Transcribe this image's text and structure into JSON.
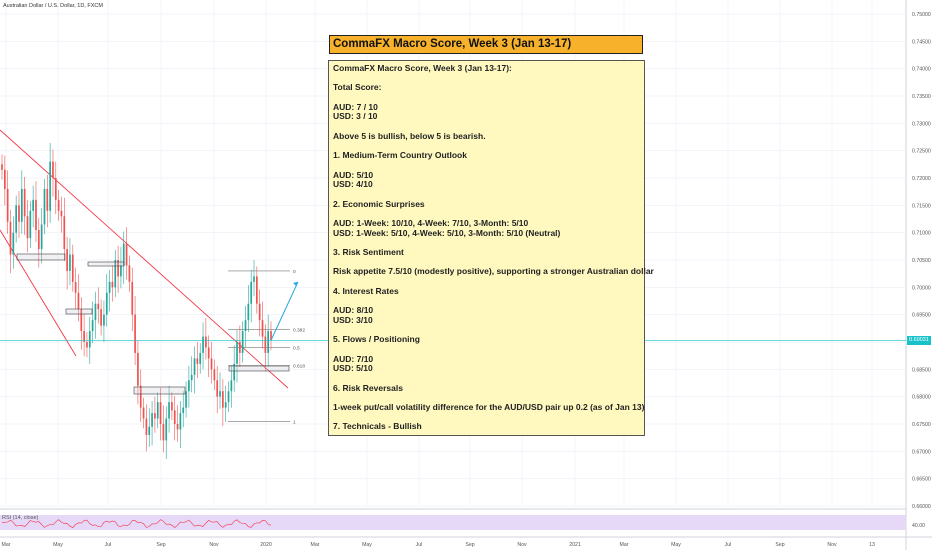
{
  "symbol_title": "Australian Dollar / U.S. Dollar, 1D, FXCM",
  "current_price": "0.69031",
  "title_box": "CommaFX Macro Score, Week 3 (Jan 13-17)",
  "note_lines": [
    "CommaFX Macro Score, Week 3 (Jan 13-17):",
    "",
    "Total Score:",
    "",
    "AUD: 7 / 10",
    "USD: 3 / 10",
    "",
    "Above 5 is bullish, below 5 is bearish.",
    "",
    "1. Medium-Term Country Outlook",
    "",
    "AUD: 5/10",
    "USD: 4/10",
    "",
    "2. Economic Surprises",
    "",
    "AUD: 1-Week: 10/10, 4-Week: 7/10, 3-Month: 5/10",
    "USD: 1-Week: 5/10, 4-Week: 5/10, 3-Month: 5/10 (Neutral)",
    "",
    "3. Risk Sentiment",
    "",
    "Risk appetite 7.5/10 (modestly positive), supporting a stronger Australian dollar",
    "",
    "4. Interest Rates",
    "",
    "AUD: 8/10",
    "USD: 3/10",
    "",
    "5. Flows / Positioning",
    "",
    "AUD: 7/10",
    "USD: 5/10",
    "",
    "6. Risk Reversals",
    "",
    "1-week put/call volatility difference for the AUD/USD pair up 0.2 (as of Jan 13)",
    "",
    "7. Technicals - Bullish"
  ],
  "rsi_label": "RSI (14, close)",
  "rsi_value": "40.00",
  "colors": {
    "up": "#26a69a",
    "down": "#ef5350",
    "trendline": "#f23645",
    "projection": "#2aa8e0",
    "price_line": "#17c3c9",
    "rsi": "#f23645",
    "rsi_band": "#e6d8f7",
    "title_box": "#f7b12b",
    "note_box": "#fff9c0"
  },
  "chart_data": {
    "type": "candlestick",
    "title": "Australian Dollar / U.S. Dollar, 1D, FXCM",
    "x_tick_labels": [
      "Mar",
      "May",
      "Jul",
      "Sep",
      "Nov",
      "2020",
      "Mar",
      "May",
      "Jul",
      "Sep",
      "Nov",
      "2021",
      "Mar",
      "May",
      "Jul",
      "Sep",
      "Nov",
      "13"
    ],
    "y_tick_labels": [
      "0.75000",
      "0.74500",
      "0.74000",
      "0.73500",
      "0.73000",
      "0.72500",
      "0.72000",
      "0.71500",
      "0.71000",
      "0.70500",
      "0.70000",
      "0.69500",
      "0.69000",
      "0.68500",
      "0.68000",
      "0.67500",
      "0.67000",
      "0.66500",
      "0.66000"
    ],
    "ylim": [
      0.66,
      0.75
    ],
    "fib_levels": [
      {
        "label": "0",
        "price": 0.703
      },
      {
        "label": "0.382",
        "price": 0.6923
      },
      {
        "label": "0.5",
        "price": 0.689
      },
      {
        "label": "0.618",
        "price": 0.6857
      },
      {
        "label": "1",
        "price": 0.6755
      }
    ],
    "series_close": [
      0.7215,
      0.718,
      0.712,
      0.706,
      0.71,
      0.715,
      0.712,
      0.718,
      0.713,
      0.709,
      0.714,
      0.716,
      0.7105,
      0.707,
      0.7115,
      0.718,
      0.714,
      0.723,
      0.72,
      0.716,
      0.714,
      0.713,
      0.707,
      0.703,
      0.706,
      0.701,
      0.699,
      0.696,
      0.692,
      0.69,
      0.689,
      0.692,
      0.694,
      0.697,
      0.696,
      0.693,
      0.695,
      0.699,
      0.701,
      0.7,
      0.705,
      0.702,
      0.704,
      0.708,
      0.704,
      0.701,
      0.695,
      0.688,
      0.682,
      0.678,
      0.676,
      0.673,
      0.6745,
      0.677,
      0.676,
      0.679,
      0.675,
      0.672,
      0.676,
      0.679,
      0.6775,
      0.675,
      0.674,
      0.677,
      0.678,
      0.681,
      0.683,
      0.684,
      0.687,
      0.686,
      0.688,
      0.691,
      0.689,
      0.687,
      0.685,
      0.683,
      0.68,
      0.681,
      0.678,
      0.679,
      0.681,
      0.683,
      0.686,
      0.69,
      0.688,
      0.692,
      0.694,
      0.697,
      0.701,
      0.702,
      0.697,
      0.694,
      0.691,
      0.688,
      0.692,
      0.6903
    ],
    "projection": {
      "from": 0.6903,
      "to": 0.701
    },
    "rsi": {
      "label": "RSI (14, close)",
      "band": [
        30,
        70
      ],
      "level": 40
    }
  }
}
